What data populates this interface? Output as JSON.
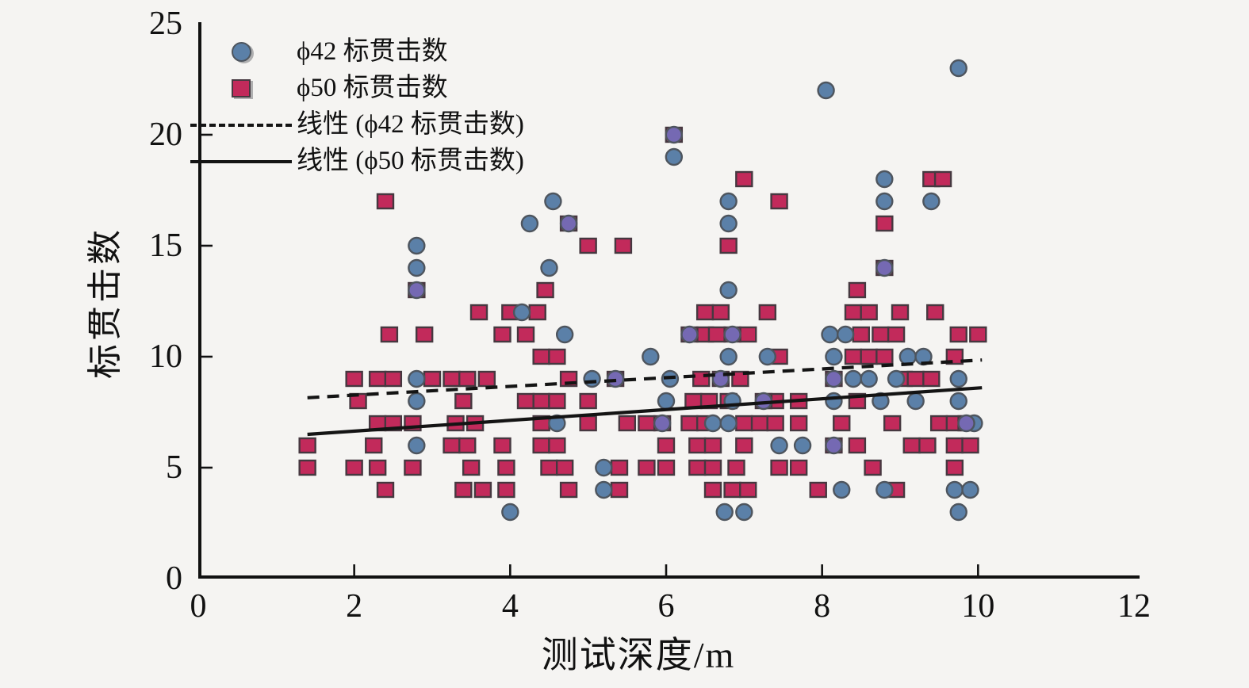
{
  "chart_data": {
    "type": "scatter",
    "title": "",
    "xlabel": "测试深度/m",
    "ylabel": "标贯击数",
    "xlim": [
      0,
      12
    ],
    "ylim": [
      0,
      25
    ],
    "xticks": [
      0,
      2,
      4,
      6,
      8,
      10,
      12
    ],
    "yticks": [
      0,
      5,
      10,
      15,
      20,
      25
    ],
    "grid": false,
    "legend_position": "top-left",
    "colors": {
      "phi42": "#5b80a8",
      "phi50": "#c22a5b",
      "overlap": "#7569b3",
      "marker_edge_blue": "#4e555e",
      "marker_edge_red": "#463840",
      "trend": "#141414",
      "axis": "#111111",
      "background": "#f5f4f2"
    },
    "series": [
      {
        "name": "ϕ42 标贯击数",
        "marker": "circle",
        "color": "#5b80a8",
        "points": [
          [
            9.75,
            23
          ],
          [
            8.05,
            22
          ],
          [
            6.1,
            19
          ],
          [
            8.8,
            18
          ],
          [
            4.55,
            17
          ],
          [
            6.8,
            17
          ],
          [
            8.8,
            17
          ],
          [
            9.4,
            17
          ],
          [
            4.25,
            16
          ],
          [
            6.8,
            16
          ],
          [
            2.8,
            15
          ],
          [
            2.8,
            14
          ],
          [
            4.5,
            14
          ],
          [
            6.8,
            13
          ],
          [
            4.15,
            12
          ],
          [
            4.7,
            11
          ],
          [
            8.1,
            11
          ],
          [
            8.3,
            11
          ],
          [
            5.8,
            10
          ],
          [
            6.8,
            10
          ],
          [
            7.3,
            10
          ],
          [
            8.15,
            10
          ],
          [
            9.1,
            10
          ],
          [
            9.3,
            10
          ],
          [
            2.8,
            9
          ],
          [
            5.05,
            9
          ],
          [
            6.05,
            9
          ],
          [
            8.4,
            9
          ],
          [
            8.6,
            9
          ],
          [
            8.95,
            9
          ],
          [
            9.75,
            9
          ],
          [
            2.8,
            8
          ],
          [
            6.0,
            8
          ],
          [
            6.85,
            8
          ],
          [
            8.15,
            8
          ],
          [
            8.75,
            8
          ],
          [
            9.2,
            8
          ],
          [
            9.75,
            8
          ],
          [
            4.6,
            7
          ],
          [
            6.6,
            7
          ],
          [
            6.8,
            7
          ],
          [
            9.95,
            7
          ],
          [
            2.8,
            6
          ],
          [
            7.45,
            6
          ],
          [
            7.75,
            6
          ],
          [
            5.2,
            5
          ],
          [
            5.2,
            4
          ],
          [
            8.25,
            4
          ],
          [
            8.8,
            4
          ],
          [
            9.7,
            4
          ],
          [
            9.9,
            4
          ],
          [
            4.0,
            3
          ],
          [
            6.75,
            3
          ],
          [
            7.0,
            3
          ],
          [
            9.75,
            3
          ]
        ]
      },
      {
        "name": "ϕ50 标贯击数",
        "marker": "square",
        "color": "#c22a5b",
        "points": [
          [
            2.4,
            17
          ],
          [
            7.0,
            18
          ],
          [
            9.4,
            18
          ],
          [
            9.55,
            18
          ],
          [
            7.45,
            17
          ],
          [
            8.8,
            16
          ],
          [
            5.0,
            15
          ],
          [
            5.45,
            15
          ],
          [
            6.8,
            15
          ],
          [
            4.45,
            13
          ],
          [
            8.45,
            13
          ],
          [
            3.6,
            12
          ],
          [
            4.0,
            12
          ],
          [
            4.35,
            12
          ],
          [
            6.5,
            12
          ],
          [
            6.7,
            12
          ],
          [
            7.3,
            12
          ],
          [
            8.4,
            12
          ],
          [
            8.6,
            12
          ],
          [
            9.0,
            12
          ],
          [
            9.45,
            12
          ],
          [
            2.45,
            11
          ],
          [
            2.9,
            11
          ],
          [
            3.9,
            11
          ],
          [
            4.2,
            11
          ],
          [
            6.5,
            11
          ],
          [
            6.65,
            11
          ],
          [
            7.05,
            11
          ],
          [
            8.5,
            11
          ],
          [
            8.75,
            11
          ],
          [
            8.95,
            11
          ],
          [
            9.75,
            11
          ],
          [
            10.0,
            11
          ],
          [
            4.4,
            10
          ],
          [
            4.6,
            10
          ],
          [
            7.45,
            10
          ],
          [
            8.4,
            10
          ],
          [
            8.6,
            10
          ],
          [
            8.8,
            10
          ],
          [
            9.7,
            10
          ],
          [
            2.0,
            9
          ],
          [
            2.3,
            9
          ],
          [
            2.5,
            9
          ],
          [
            3.0,
            9
          ],
          [
            3.25,
            9
          ],
          [
            3.45,
            9
          ],
          [
            3.7,
            9
          ],
          [
            4.75,
            9
          ],
          [
            6.45,
            9
          ],
          [
            6.95,
            9
          ],
          [
            9.05,
            9
          ],
          [
            9.2,
            9
          ],
          [
            9.4,
            9
          ],
          [
            2.05,
            8
          ],
          [
            3.4,
            8
          ],
          [
            4.2,
            8
          ],
          [
            4.4,
            8
          ],
          [
            4.6,
            8
          ],
          [
            5.0,
            8
          ],
          [
            6.35,
            8
          ],
          [
            6.55,
            8
          ],
          [
            6.8,
            8
          ],
          [
            7.4,
            8
          ],
          [
            7.7,
            8
          ],
          [
            8.45,
            8
          ],
          [
            2.3,
            7
          ],
          [
            2.5,
            7
          ],
          [
            2.75,
            7
          ],
          [
            3.3,
            7
          ],
          [
            3.55,
            7
          ],
          [
            4.4,
            7
          ],
          [
            5.0,
            7
          ],
          [
            5.5,
            7
          ],
          [
            5.75,
            7
          ],
          [
            6.3,
            7
          ],
          [
            6.5,
            7
          ],
          [
            7.0,
            7
          ],
          [
            7.2,
            7
          ],
          [
            7.4,
            7
          ],
          [
            7.7,
            7
          ],
          [
            8.25,
            7
          ],
          [
            8.9,
            7
          ],
          [
            9.5,
            7
          ],
          [
            9.7,
            7
          ],
          [
            1.4,
            6
          ],
          [
            2.25,
            6
          ],
          [
            3.25,
            6
          ],
          [
            3.45,
            6
          ],
          [
            3.9,
            6
          ],
          [
            4.4,
            6
          ],
          [
            4.6,
            6
          ],
          [
            6.0,
            6
          ],
          [
            6.4,
            6
          ],
          [
            6.6,
            6
          ],
          [
            7.0,
            6
          ],
          [
            8.45,
            6
          ],
          [
            9.15,
            6
          ],
          [
            9.35,
            6
          ],
          [
            9.7,
            6
          ],
          [
            9.9,
            6
          ],
          [
            1.4,
            5
          ],
          [
            2.0,
            5
          ],
          [
            2.3,
            5
          ],
          [
            2.75,
            5
          ],
          [
            3.5,
            5
          ],
          [
            3.95,
            5
          ],
          [
            4.5,
            5
          ],
          [
            4.7,
            5
          ],
          [
            5.4,
            5
          ],
          [
            5.75,
            5
          ],
          [
            6.0,
            5
          ],
          [
            6.4,
            5
          ],
          [
            6.6,
            5
          ],
          [
            6.9,
            5
          ],
          [
            7.45,
            5
          ],
          [
            7.7,
            5
          ],
          [
            8.65,
            5
          ],
          [
            9.7,
            5
          ],
          [
            2.4,
            4
          ],
          [
            3.4,
            4
          ],
          [
            3.65,
            4
          ],
          [
            3.95,
            4
          ],
          [
            4.75,
            4
          ],
          [
            5.4,
            4
          ],
          [
            6.6,
            4
          ],
          [
            6.85,
            4
          ],
          [
            7.05,
            4
          ],
          [
            7.95,
            4
          ],
          [
            8.95,
            4
          ]
        ]
      },
      {
        "name": "overlap-both-series",
        "marker": "circle-on-square",
        "color": "#7569b3",
        "points": [
          [
            6.1,
            20
          ],
          [
            4.75,
            16
          ],
          [
            8.8,
            14
          ],
          [
            2.8,
            13
          ],
          [
            6.3,
            11
          ],
          [
            6.85,
            11
          ],
          [
            5.35,
            9
          ],
          [
            6.7,
            9
          ],
          [
            8.15,
            9
          ],
          [
            7.25,
            8
          ],
          [
            5.95,
            7
          ],
          [
            9.85,
            7
          ],
          [
            8.15,
            6
          ]
        ]
      }
    ],
    "trendlines": [
      {
        "name": "线性 (ϕ42 标贯击数)",
        "style": "dashed",
        "from": [
          1.4,
          8.15
        ],
        "to": [
          10.05,
          9.85
        ]
      },
      {
        "name": "线性 (ϕ50 标贯击数)",
        "style": "solid",
        "from": [
          1.4,
          6.5
        ],
        "to": [
          10.05,
          8.6
        ]
      }
    ],
    "legend": {
      "items": [
        {
          "marker": "circle",
          "label": "ϕ42 标贯击数"
        },
        {
          "marker": "square",
          "label": "ϕ50 标贯击数"
        },
        {
          "marker": "dashed-line",
          "label": "线性 (ϕ42 标贯击数)"
        },
        {
          "marker": "solid-line",
          "label": "线性 (ϕ50 标贯击数)"
        }
      ]
    }
  }
}
